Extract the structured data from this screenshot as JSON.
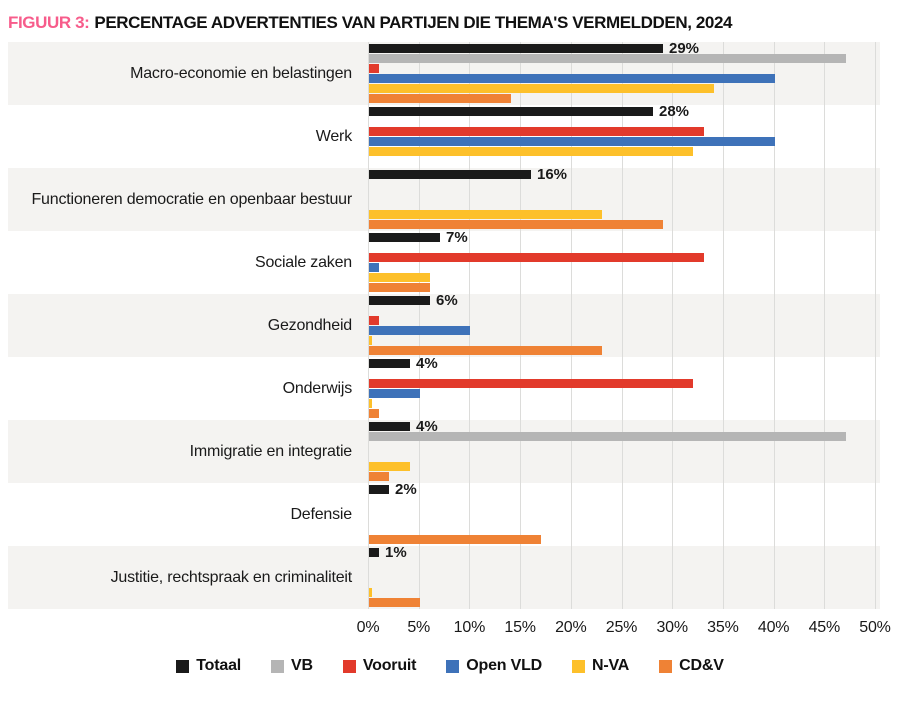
{
  "title": {
    "label": "FIGUUR 3:",
    "text": "PERCENTAGE ADVERTENTIES VAN PARTIJEN DIE THEMA'S VERMELDDEN, 2024"
  },
  "colors": {
    "title_accent": "#f75c8b",
    "band_shade": "#f4f3f1",
    "gridline": "#dcdcda",
    "text": "#1a1a1a"
  },
  "chart_data": {
    "type": "bar",
    "orientation": "horizontal",
    "title": "Percentage advertenties van partijen die thema's vermeldden, 2024",
    "categories": [
      "Macro-economie en belastingen",
      "Werk",
      "Functioneren democratie en openbaar bestuur",
      "Sociale zaken",
      "Gezondheid",
      "Onderwijs",
      "Immigratie en integratie",
      "Defensie",
      "Justitie, rechtspraak en criminaliteit"
    ],
    "series": [
      {
        "name": "Totaal",
        "color": "#1a1a1a",
        "values": [
          29,
          28,
          16,
          7,
          6,
          4,
          4,
          2,
          1
        ]
      },
      {
        "name": "VB",
        "color": "#b5b5b5",
        "values": [
          47,
          0,
          0,
          0,
          0,
          0,
          47,
          0,
          0
        ]
      },
      {
        "name": "Vooruit",
        "color": "#e23a2b",
        "values": [
          1,
          33,
          0,
          33,
          1,
          32,
          0,
          0,
          0
        ]
      },
      {
        "name": "Open VLD",
        "color": "#3e72b9",
        "values": [
          40,
          40,
          0,
          1,
          10,
          5,
          0,
          0,
          0
        ]
      },
      {
        "name": "N-VA",
        "color": "#fdc02a",
        "values": [
          34,
          32,
          23,
          6,
          0.3,
          0.3,
          4,
          0,
          0.3
        ]
      },
      {
        "name": "CD&V",
        "color": "#ef8235",
        "values": [
          14,
          0,
          29,
          6,
          23,
          1,
          2,
          17,
          5
        ]
      }
    ],
    "value_labels": {
      "series": "Totaal",
      "labels": [
        "29%",
        "28%",
        "16%",
        "7%",
        "6%",
        "4%",
        "4%",
        "2%",
        "1%"
      ]
    },
    "x_ticks": [
      "0%",
      "5%",
      "10%",
      "15%",
      "20%",
      "25%",
      "30%",
      "35%",
      "40%",
      "45%",
      "50%"
    ],
    "xlim": [
      0,
      50
    ],
    "grid": true,
    "legend_position": "bottom"
  },
  "legend": {
    "items": [
      "Totaal",
      "VB",
      "Vooruit",
      "Open VLD",
      "N-VA",
      "CD&V"
    ]
  }
}
